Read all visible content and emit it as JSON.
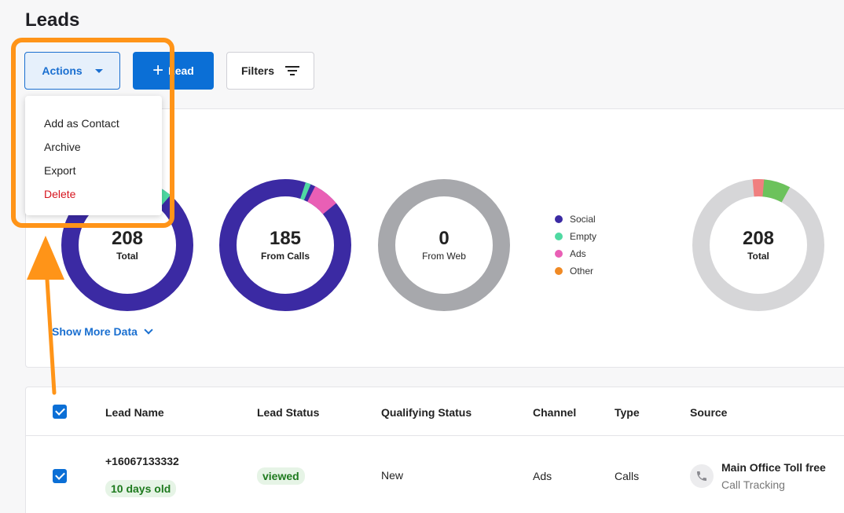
{
  "page": {
    "title": "Leads"
  },
  "toolbar": {
    "actions_label": "Actions",
    "add_label": "Lead",
    "filters_label": "Filters"
  },
  "actions_menu": {
    "items": [
      {
        "label": "Add as Contact"
      },
      {
        "label": "Archive"
      },
      {
        "label": "Export"
      },
      {
        "label": "Delete"
      }
    ]
  },
  "stats": {
    "donuts": [
      {
        "value": "208",
        "label": "Total"
      },
      {
        "value": "185",
        "label": "From Calls"
      },
      {
        "value": "0",
        "label": "From Web"
      },
      {
        "value": "208",
        "label": "Total"
      }
    ],
    "legend": [
      {
        "label": "Social",
        "color": "#3b2aa3"
      },
      {
        "label": "Empty",
        "color": "#4fd9a2"
      },
      {
        "label": "Ads",
        "color": "#e95fb5"
      },
      {
        "label": "Other",
        "color": "#f08a24"
      }
    ],
    "show_more_label": "Show More Data"
  },
  "table": {
    "headers": {
      "lead_name": "Lead Name",
      "lead_status": "Lead Status",
      "qualifying_status": "Qualifying Status",
      "channel": "Channel",
      "type": "Type",
      "source": "Source"
    },
    "rows": [
      {
        "phone": "+16067133332",
        "age": "10 days old",
        "status": "viewed",
        "qualifying": "New",
        "channel": "Ads",
        "type": "Calls",
        "source_name": "Main Office Toll free",
        "source_sub": "Call Tracking"
      }
    ]
  },
  "colors": {
    "accent": "#0b6fd6",
    "highlight": "#ff9418",
    "danger": "#d6141e"
  }
}
